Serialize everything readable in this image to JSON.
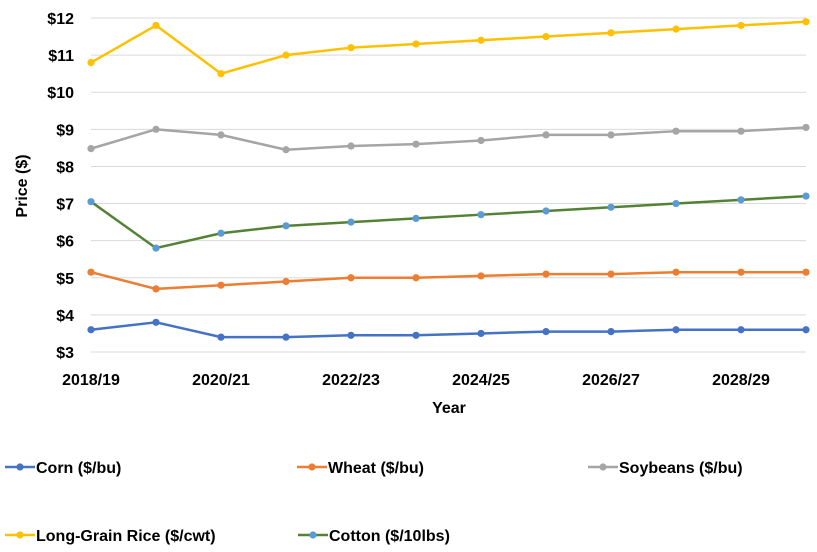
{
  "chart_data": {
    "type": "line",
    "title": "",
    "xlabel": "Year",
    "ylabel": "Price ($)",
    "ylim": [
      3,
      12
    ],
    "y_ticks": [
      "$3",
      "$4",
      "$5",
      "$6",
      "$7",
      "$8",
      "$9",
      "$10",
      "$11",
      "$12"
    ],
    "x_tick_labels": [
      "2018/19",
      "2020/21",
      "2022/23",
      "2024/25",
      "2026/27",
      "2028/29"
    ],
    "categories": [
      "2018/19",
      "2019/20",
      "2020/21",
      "2021/22",
      "2022/23",
      "2023/24",
      "2024/25",
      "2025/26",
      "2026/27",
      "2027/28",
      "2028/29",
      "2029/30"
    ],
    "grid": "horizontal",
    "legend_position": "bottom",
    "series": [
      {
        "name": "Corn ($/bu)",
        "line_color": "#4472C4",
        "marker_color": "#4472C4",
        "values": [
          3.6,
          3.8,
          3.4,
          3.4,
          3.45,
          3.45,
          3.5,
          3.55,
          3.55,
          3.6,
          3.6,
          3.6
        ]
      },
      {
        "name": "Wheat ($/bu)",
        "line_color": "#ED7D31",
        "marker_color": "#ED7D31",
        "values": [
          5.15,
          4.7,
          4.8,
          4.9,
          5.0,
          5.0,
          5.05,
          5.1,
          5.1,
          5.15,
          5.15,
          5.15
        ]
      },
      {
        "name": "Soybeans ($/bu)",
        "line_color": "#A5A5A5",
        "marker_color": "#A5A5A5",
        "values": [
          8.48,
          9.0,
          8.85,
          8.45,
          8.55,
          8.6,
          8.7,
          8.85,
          8.85,
          8.95,
          8.95,
          9.05
        ]
      },
      {
        "name": "Long-Grain Rice ($/cwt)",
        "line_color": "#FFC000",
        "marker_color": "#FFC000",
        "values": [
          10.8,
          11.8,
          10.5,
          11.0,
          11.2,
          11.3,
          11.4,
          11.5,
          11.6,
          11.7,
          11.8,
          11.9
        ]
      },
      {
        "name": "Cotton ($/10lbs)",
        "line_color": "#548235",
        "marker_color": "#5B9BD5",
        "values": [
          7.05,
          5.8,
          6.2,
          6.4,
          6.5,
          6.6,
          6.7,
          6.8,
          6.9,
          7.0,
          7.1,
          7.2
        ]
      }
    ]
  }
}
